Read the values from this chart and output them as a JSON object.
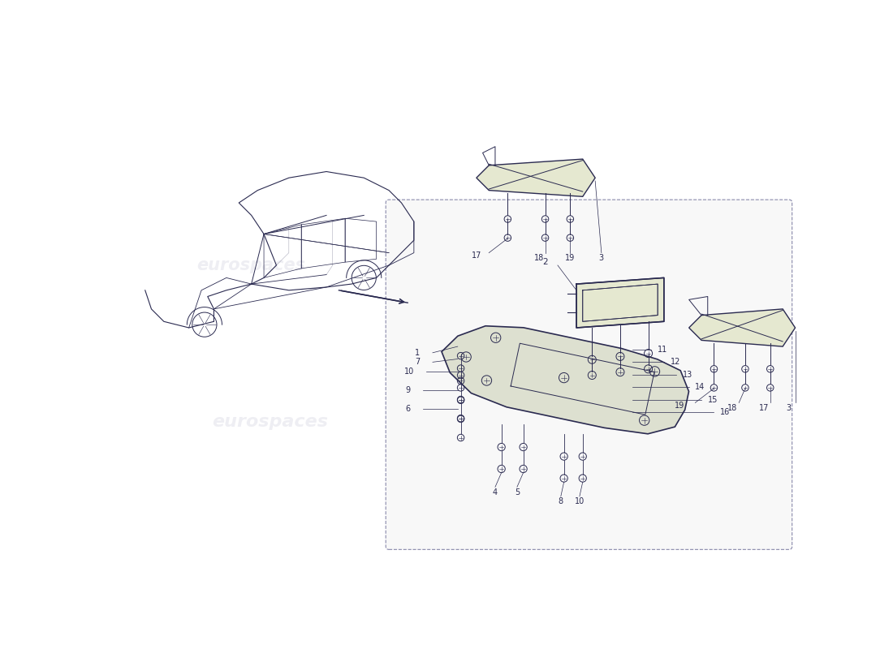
{
  "bg_color": "#ffffff",
  "line_color": "#2a2a50",
  "watermark_color": "#c5c5d5",
  "box_fill": "#f8f8f8",
  "panel_fill": "#dde0d0",
  "bracket_fill": "#e5e8d0",
  "watermark_text": "eurospaces"
}
